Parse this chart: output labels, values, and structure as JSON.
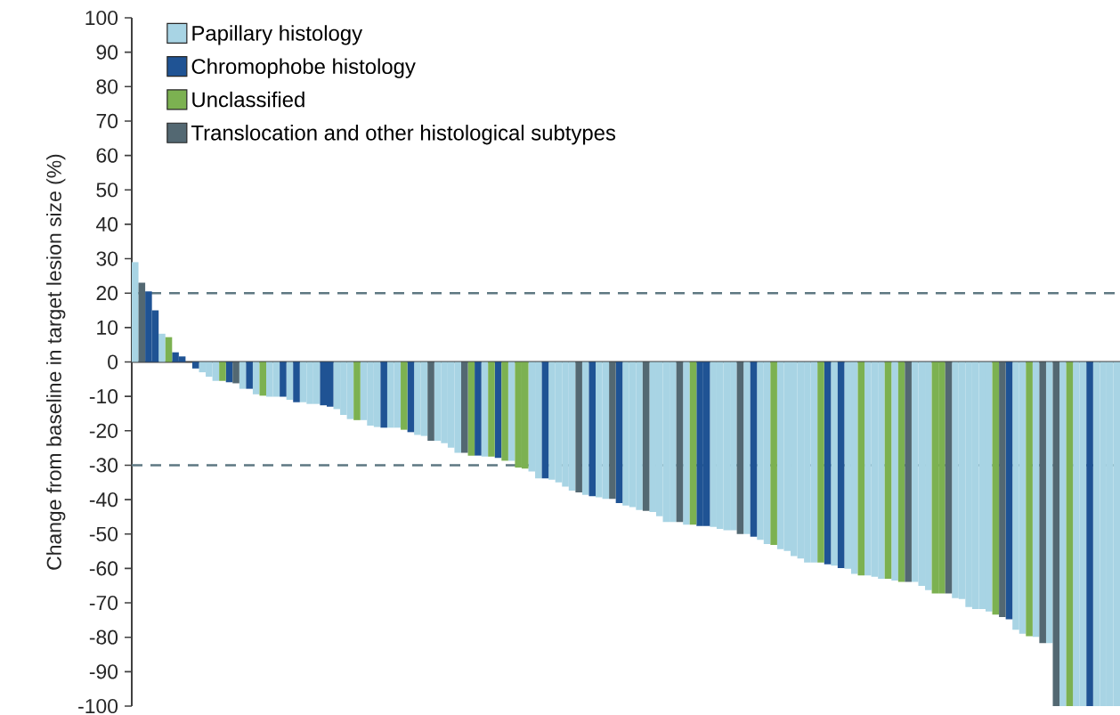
{
  "chart_data": {
    "type": "bar",
    "ylabel": "Change from baseline in target lesion size (%)",
    "categories": [
      null,
      null,
      null,
      null,
      null,
      null,
      null,
      null,
      null,
      null,
      null,
      null,
      null,
      null,
      null,
      null,
      null,
      null,
      null,
      null,
      null,
      null,
      null,
      null,
      null,
      null,
      null,
      null,
      null,
      null,
      null,
      null,
      null,
      null,
      null,
      null,
      null,
      null,
      null,
      null,
      null,
      null,
      null,
      null,
      null,
      null,
      null,
      null,
      null,
      null,
      null,
      null,
      null,
      null,
      null,
      null,
      null,
      null,
      null,
      null,
      null,
      null,
      null,
      null,
      null,
      null,
      null,
      null,
      null,
      null,
      null,
      null,
      null,
      null,
      null,
      null,
      null,
      null,
      null,
      null,
      null,
      null,
      null,
      null,
      null,
      null,
      null,
      null,
      null,
      null,
      null,
      null,
      null,
      null,
      null,
      null,
      null,
      null,
      null,
      null,
      null,
      null,
      null,
      null,
      null,
      null,
      null,
      null,
      null,
      null,
      null,
      null,
      null,
      null,
      null,
      null,
      null,
      null,
      null,
      null,
      null,
      null,
      null,
      null,
      null,
      null,
      null,
      null,
      null,
      null,
      null,
      null,
      null,
      null,
      null,
      null,
      null,
      null,
      null,
      null,
      null,
      null,
      null,
      null,
      null,
      null,
      null
    ],
    "series": [
      {
        "name": "Papillary histology",
        "color": "#a8d4e4",
        "values": [
          29,
          null,
          null,
          null,
          8.2,
          null,
          null,
          null,
          null,
          null,
          -3,
          -4.3,
          -5.5,
          null,
          null,
          null,
          -7.8,
          null,
          -9.4,
          null,
          -10.1,
          -10.1,
          null,
          -11,
          null,
          -11.7,
          -12.2,
          -12.2,
          null,
          null,
          -13.7,
          -15.4,
          -16.6,
          null,
          -16.9,
          -18.5,
          -18.9,
          null,
          -19.1,
          -19.1,
          null,
          null,
          -21.2,
          -21.5,
          null,
          -22.9,
          -23.6,
          -24.9,
          -26.4,
          null,
          null,
          null,
          -27.5,
          null,
          null,
          null,
          -28.7,
          null,
          null,
          -31.8,
          -33.8,
          null,
          -34.2,
          -35,
          -36.2,
          -37.4,
          null,
          -38.6,
          null,
          -39.3,
          -39.8,
          null,
          null,
          -41.7,
          -42.2,
          -43,
          null,
          -43.6,
          -44.8,
          -46.5,
          -46.5,
          null,
          -47.3,
          null,
          null,
          null,
          -47.9,
          -48.5,
          -48.9,
          -48.9,
          null,
          -50,
          null,
          -51.7,
          -52.9,
          null,
          -54.4,
          -54.9,
          -56.4,
          -57.1,
          -58.3,
          -58.3,
          null,
          null,
          -59.2,
          null,
          -60.1,
          -61.6,
          null,
          -62,
          -62.4,
          -63,
          null,
          -63.5,
          null,
          null,
          -63.9,
          -65.1,
          -66.3,
          null,
          null,
          null,
          -68.6,
          -68.9,
          -71.2,
          -71.8,
          -71.8,
          -72.5,
          null,
          null,
          null,
          -77.8,
          -79,
          null,
          -79.9,
          null,
          -81.7,
          null,
          -100,
          null,
          -100,
          -100,
          null,
          -100,
          -100,
          -100,
          -100
        ]
      },
      {
        "name": "Chromophobe histology",
        "color": "#1f5394",
        "values": [
          null,
          null,
          20.5,
          15,
          null,
          null,
          2.8,
          1.6,
          null,
          -1.9,
          null,
          null,
          null,
          null,
          -5.9,
          null,
          null,
          -7.8,
          null,
          null,
          null,
          null,
          -10.1,
          null,
          -11.7,
          null,
          null,
          null,
          -12.6,
          -13,
          null,
          null,
          null,
          null,
          null,
          null,
          null,
          -19.1,
          null,
          null,
          null,
          -20.4,
          null,
          null,
          null,
          null,
          null,
          null,
          null,
          null,
          null,
          -27.2,
          null,
          null,
          -27.9,
          null,
          null,
          null,
          null,
          null,
          null,
          -33.8,
          null,
          null,
          null,
          null,
          null,
          null,
          -39,
          null,
          null,
          null,
          -41,
          null,
          null,
          null,
          null,
          null,
          null,
          null,
          null,
          null,
          null,
          null,
          -47.7,
          -47.7,
          null,
          null,
          null,
          null,
          null,
          null,
          -50.8,
          null,
          null,
          null,
          null,
          null,
          null,
          null,
          null,
          null,
          null,
          -58.8,
          null,
          -59.9,
          null,
          null,
          null,
          null,
          null,
          null,
          null,
          null,
          null,
          null,
          null,
          null,
          null,
          null,
          null,
          null,
          null,
          null,
          null,
          null,
          null,
          null,
          null,
          null,
          -74.8,
          null,
          null,
          null,
          null,
          null,
          null,
          null,
          null,
          null,
          null,
          null,
          -100,
          null,
          null,
          null,
          null
        ]
      },
      {
        "name": "Unclassified",
        "color": "#7cb151",
        "values": [
          null,
          null,
          null,
          null,
          null,
          7.2,
          null,
          null,
          null,
          null,
          null,
          null,
          null,
          -5.5,
          null,
          null,
          null,
          null,
          null,
          -9.8,
          null,
          null,
          null,
          null,
          null,
          null,
          null,
          null,
          null,
          null,
          null,
          null,
          null,
          -16.9,
          null,
          null,
          null,
          null,
          null,
          null,
          -19.7,
          null,
          null,
          null,
          null,
          null,
          null,
          null,
          null,
          null,
          -27.2,
          null,
          null,
          -27.5,
          null,
          -28.7,
          null,
          -30.7,
          -31,
          null,
          null,
          null,
          null,
          null,
          null,
          null,
          null,
          null,
          null,
          null,
          null,
          null,
          null,
          null,
          null,
          null,
          null,
          null,
          null,
          null,
          null,
          null,
          null,
          -47.3,
          null,
          null,
          null,
          null,
          null,
          null,
          null,
          null,
          null,
          null,
          null,
          -53.2,
          null,
          null,
          null,
          null,
          null,
          null,
          -58.3,
          null,
          null,
          null,
          null,
          null,
          -62,
          null,
          null,
          null,
          -63,
          null,
          -63.9,
          null,
          null,
          null,
          null,
          -67.3,
          -67.3,
          null,
          null,
          null,
          null,
          null,
          null,
          null,
          -73.4,
          null,
          null,
          null,
          null,
          -79.7,
          null,
          null,
          null,
          null,
          null,
          -100,
          null,
          null,
          null,
          null,
          null,
          null,
          null
        ]
      },
      {
        "name": "Translocation and other histological subtypes",
        "color": "#536872",
        "values": [
          null,
          23,
          null,
          null,
          null,
          null,
          null,
          null,
          null,
          null,
          null,
          null,
          null,
          null,
          null,
          -6.2,
          null,
          null,
          null,
          null,
          null,
          null,
          null,
          null,
          null,
          null,
          null,
          null,
          null,
          null,
          null,
          null,
          null,
          null,
          null,
          null,
          null,
          null,
          null,
          null,
          null,
          null,
          null,
          null,
          -22.9,
          null,
          null,
          null,
          null,
          -26.4,
          null,
          null,
          null,
          null,
          null,
          null,
          null,
          null,
          null,
          null,
          null,
          null,
          null,
          null,
          null,
          null,
          -37.9,
          null,
          null,
          null,
          null,
          -39.8,
          null,
          null,
          null,
          null,
          -43.3,
          null,
          null,
          null,
          null,
          -46.5,
          null,
          null,
          null,
          null,
          null,
          null,
          null,
          null,
          -50,
          null,
          null,
          null,
          null,
          null,
          null,
          null,
          null,
          null,
          null,
          null,
          null,
          null,
          null,
          null,
          null,
          null,
          null,
          null,
          null,
          null,
          null,
          null,
          null,
          -63.9,
          null,
          null,
          null,
          null,
          null,
          -67.3,
          null,
          null,
          null,
          null,
          null,
          null,
          null,
          -74.1,
          null,
          null,
          null,
          null,
          null,
          -81.7,
          null,
          -100,
          null,
          null,
          null,
          null,
          null,
          null,
          null,
          null,
          null
        ]
      }
    ],
    "ylim": [
      -100,
      100
    ],
    "yticks": [
      -100,
      -90,
      -80,
      -70,
      -60,
      -50,
      -40,
      -30,
      -20,
      -10,
      0,
      10,
      20,
      30,
      40,
      50,
      60,
      70,
      80,
      90,
      100
    ],
    "ref_lines": [
      {
        "axis": "y",
        "value": 20,
        "color": "#5e7882",
        "line_style": "dashed"
      },
      {
        "axis": "y",
        "value": -30,
        "color": "#5e7882",
        "line_style": "dashed"
      }
    ],
    "legend": "top left"
  }
}
